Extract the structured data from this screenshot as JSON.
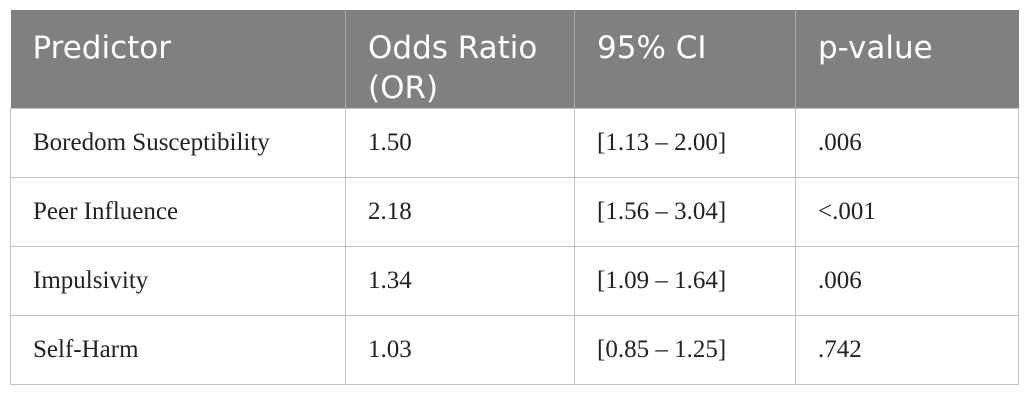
{
  "table": {
    "header": [
      "Predictor",
      "Odds Ratio (OR)",
      "95% CI",
      "p-value"
    ],
    "rows": [
      [
        "Boredom Susceptibility",
        "1.50",
        "[1.13 – 2.00]",
        ".006"
      ],
      [
        "Peer Influence",
        "2.18",
        "[1.56 – 3.04]",
        "<.001"
      ],
      [
        "Impulsivity",
        "1.34",
        "[1.09 – 1.64]",
        ".006"
      ],
      [
        "Self-Harm",
        "1.03",
        "[0.85 – 1.25]",
        ".742"
      ]
    ]
  }
}
